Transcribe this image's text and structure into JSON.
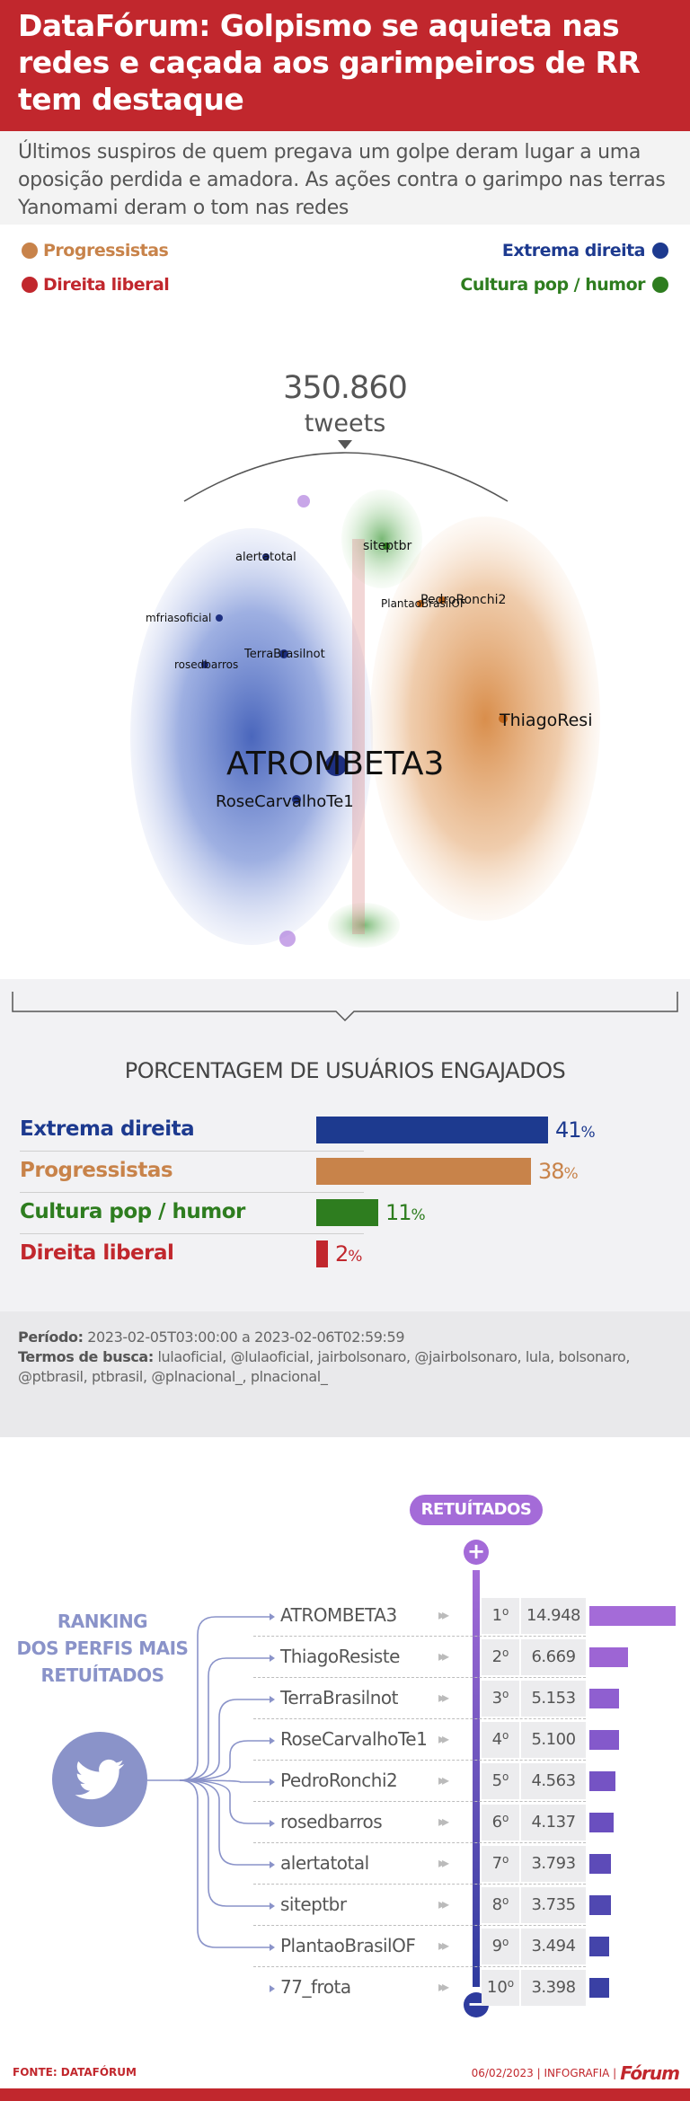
{
  "header": {
    "title": "DataFórum: Golpismo se aquieta nas redes e caçada aos garimpeiros de RR tem destaque"
  },
  "subtitle": "Últimos suspiros de quem pregava um golpe deram lugar a uma oposição perdida e amadora. As ações contra o garimpo nas terras Yanomami deram o tom nas redes",
  "legend": {
    "progressistas": {
      "label": "Progressistas",
      "color": "#c8834a"
    },
    "extrema_direita": {
      "label": "Extrema direita",
      "color": "#1d3a8f"
    },
    "direita_liberal": {
      "label": "Direita liberal",
      "color": "#c1272d"
    },
    "cultura_pop": {
      "label": "Cultura pop / humor",
      "color": "#2e7d1f"
    }
  },
  "network": {
    "total": "350.860",
    "unit": "tweets",
    "labels": [
      {
        "text": "ATROMBETA3",
        "size": "large"
      },
      {
        "text": "RoseCarvalhoTe1",
        "size": "medium"
      },
      {
        "text": "ThiagoResi",
        "size": "medium"
      },
      {
        "text": "alertatotal",
        "size": "small"
      },
      {
        "text": "siteptbr",
        "size": "small"
      },
      {
        "text": "mfriasoficial",
        "size": "small"
      },
      {
        "text": "PedroRonchi2",
        "size": "small"
      },
      {
        "text": "PlantaoBrasilOF",
        "size": "small"
      },
      {
        "text": "TerraBrasilnot",
        "size": "small"
      },
      {
        "text": "rosedbarros",
        "size": "small"
      }
    ]
  },
  "engagement": {
    "title": "PORCENTAGEM DE USUÁRIOS ENGAJADOS",
    "rows": [
      {
        "label": "Extrema direita",
        "value": 41,
        "pct": "41",
        "color": "#1d3a8f"
      },
      {
        "label": "Progressistas",
        "value": 38,
        "pct": "38",
        "color": "#c8834a"
      },
      {
        "label": "Cultura pop / humor",
        "value": 11,
        "pct": "11",
        "color": "#2e7d1f"
      },
      {
        "label": "Direita liberal",
        "value": 2,
        "pct": "2",
        "color": "#c1272d"
      }
    ],
    "pct_symbol": "%"
  },
  "meta": {
    "period_label": "Período:",
    "period_value": "2023-02-05T03:00:00 a 2023-02-06T02:59:59",
    "terms_label": "Termos de busca:",
    "terms_value": "lulaoficial, @lulaoficial, jairbolsonaro, @jairbolsonaro, lula, bolsonaro, @ptbrasil, ptbrasil, @plnacional_, plnacional_"
  },
  "ranking": {
    "title_line1": "RANKING",
    "title_line2": "DOS PERFIS MAIS",
    "title_line3": "RETUÍTADOS",
    "pill": "RETUÍTADOS",
    "plus": "+",
    "minus": "−",
    "rows": [
      {
        "name": "ATROMBETA3",
        "pos": "1",
        "value": "14.948",
        "num": 14948
      },
      {
        "name": "ThiagoResiste",
        "pos": "2",
        "value": "6.669",
        "num": 6669
      },
      {
        "name": "TerraBrasilnot",
        "pos": "3",
        "value": "5.153",
        "num": 5153
      },
      {
        "name": "RoseCarvalhoTe1",
        "pos": "4",
        "value": "5.100",
        "num": 5100
      },
      {
        "name": "PedroRonchi2",
        "pos": "5",
        "value": "4.563",
        "num": 4563
      },
      {
        "name": "rosedbarros",
        "pos": "6",
        "value": "4.137",
        "num": 4137
      },
      {
        "name": "alertatotal",
        "pos": "7",
        "value": "3.793",
        "num": 3793
      },
      {
        "name": "siteptbr",
        "pos": "8",
        "value": "3.735",
        "num": 3735
      },
      {
        "name": "PlantaoBrasilOF",
        "pos": "9",
        "value": "3.494",
        "num": 3494
      },
      {
        "name": "77_frota",
        "pos": "10",
        "value": "3.398",
        "num": 3398
      }
    ],
    "ordinal": "o"
  },
  "footer": {
    "source": "FONTE: DATAFÓRUM",
    "date_credit": "06/02/2023 | INFOGRAFIA |",
    "brand": "Fórum"
  }
}
